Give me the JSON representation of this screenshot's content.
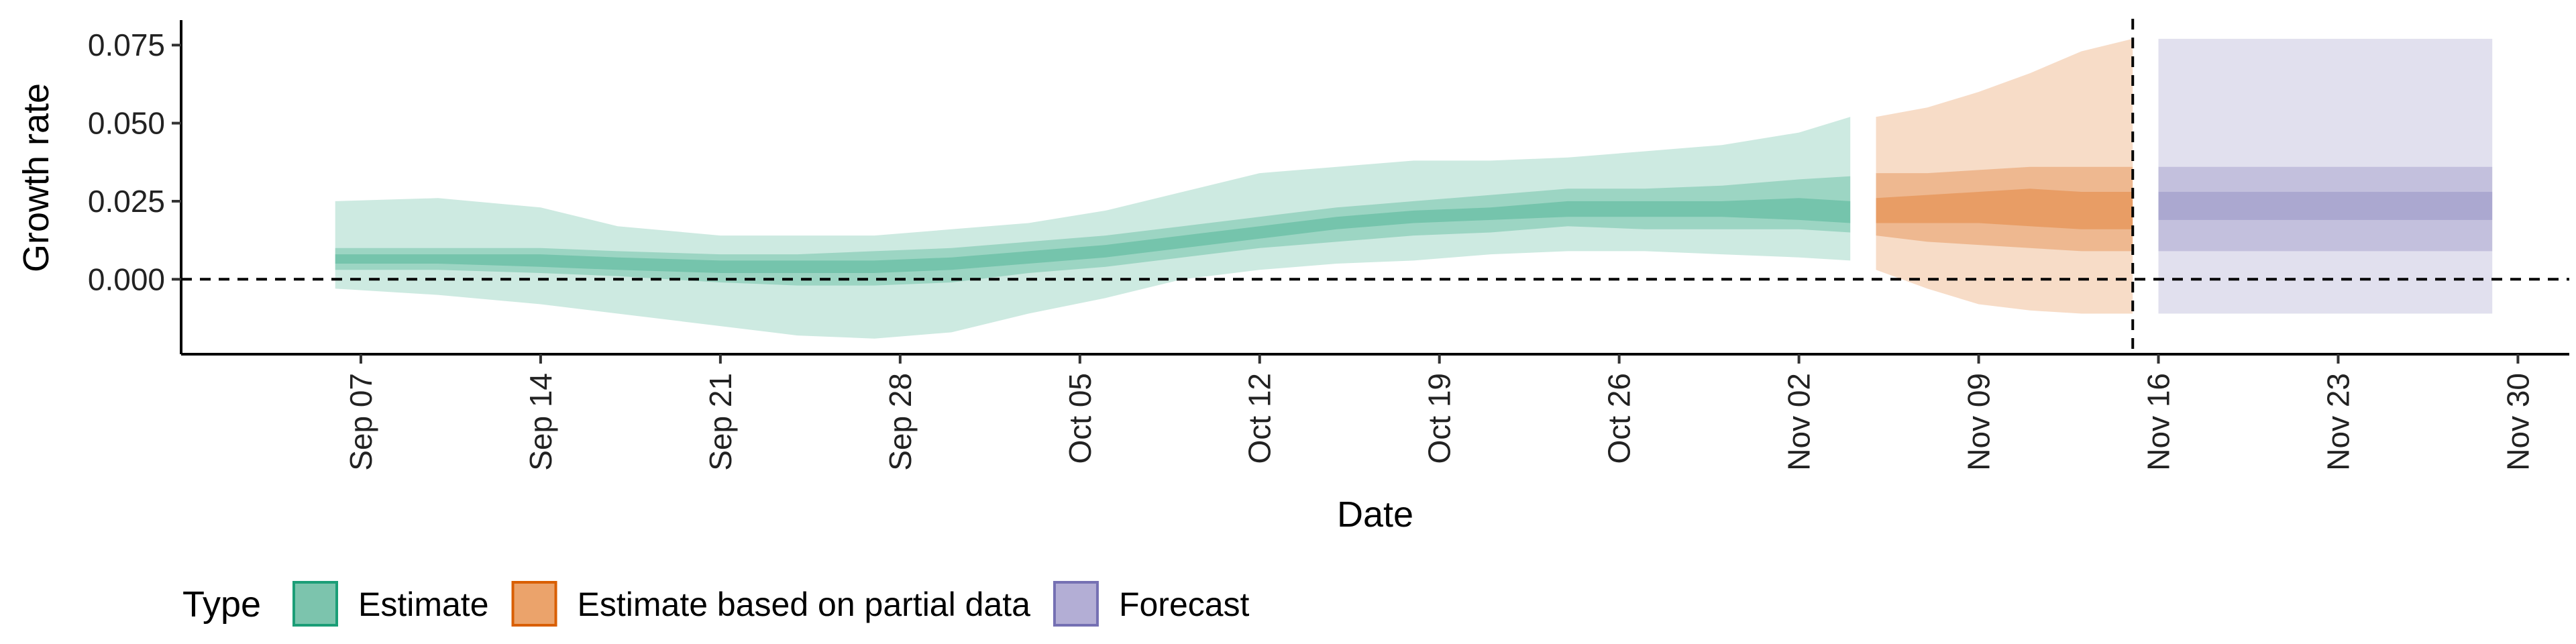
{
  "chart_data": {
    "type": "area",
    "title": "",
    "xlabel": "Date",
    "ylabel": "Growth rate",
    "x_start": "2020-09-06",
    "x_end": "2020-11-29",
    "xlim": [
      "2020-08-31",
      "2020-12-02"
    ],
    "ylim": [
      -0.024,
      0.083
    ],
    "x_ticks": [
      {
        "date": "2020-09-07",
        "label": "Sep 07"
      },
      {
        "date": "2020-09-14",
        "label": "Sep 14"
      },
      {
        "date": "2020-09-21",
        "label": "Sep 21"
      },
      {
        "date": "2020-09-28",
        "label": "Sep 28"
      },
      {
        "date": "2020-10-05",
        "label": "Oct 05"
      },
      {
        "date": "2020-10-12",
        "label": "Oct 12"
      },
      {
        "date": "2020-10-19",
        "label": "Oct 19"
      },
      {
        "date": "2020-10-26",
        "label": "Oct 26"
      },
      {
        "date": "2020-11-02",
        "label": "Nov 02"
      },
      {
        "date": "2020-11-09",
        "label": "Nov 09"
      },
      {
        "date": "2020-11-16",
        "label": "Nov 16"
      },
      {
        "date": "2020-11-23",
        "label": "Nov 23"
      },
      {
        "date": "2020-11-30",
        "label": "Nov 30"
      }
    ],
    "y_ticks": [
      {
        "value": 0.0,
        "label": "0.000"
      },
      {
        "value": 0.025,
        "label": "0.025"
      },
      {
        "value": 0.05,
        "label": "0.050"
      },
      {
        "value": 0.075,
        "label": "0.075"
      }
    ],
    "reference_lines": {
      "horizontal_y": 0,
      "vertical_date": "2020-11-15"
    },
    "grid": false,
    "legend_placement": "bottom-left",
    "legend": {
      "title": "Type",
      "items": [
        {
          "label": "Estimate",
          "fill": "#7cc4ad",
          "stroke": "#1b9e77"
        },
        {
          "label": "Estimate based on partial data",
          "fill": "#eba36b",
          "stroke": "#d95f02"
        },
        {
          "label": "Forecast",
          "fill": "#b3aed5",
          "stroke": "#7570b3"
        }
      ]
    },
    "series": [
      {
        "name": "Estimate",
        "color": "#1b9e77",
        "points": [
          {
            "date": "2020-09-06",
            "lower90": -0.003,
            "upper90": 0.025,
            "lower50": 0.003,
            "upper50": 0.01,
            "lower20": 0.005,
            "upper20": 0.008
          },
          {
            "date": "2020-09-10",
            "lower90": -0.005,
            "upper90": 0.026,
            "lower50": 0.003,
            "upper50": 0.01,
            "lower20": 0.005,
            "upper20": 0.008
          },
          {
            "date": "2020-09-14",
            "lower90": -0.008,
            "upper90": 0.023,
            "lower50": 0.002,
            "upper50": 0.01,
            "lower20": 0.004,
            "upper20": 0.008
          },
          {
            "date": "2020-09-17",
            "lower90": -0.011,
            "upper90": 0.017,
            "lower50": 0.001,
            "upper50": 0.009,
            "lower20": 0.003,
            "upper20": 0.007
          },
          {
            "date": "2020-09-21",
            "lower90": -0.015,
            "upper90": 0.014,
            "lower50": -0.001,
            "upper50": 0.008,
            "lower20": 0.002,
            "upper20": 0.006
          },
          {
            "date": "2020-09-24",
            "lower90": -0.018,
            "upper90": 0.014,
            "lower50": -0.002,
            "upper50": 0.008,
            "lower20": 0.002,
            "upper20": 0.006
          },
          {
            "date": "2020-09-27",
            "lower90": -0.019,
            "upper90": 0.014,
            "lower50": -0.002,
            "upper50": 0.009,
            "lower20": 0.002,
            "upper20": 0.006
          },
          {
            "date": "2020-09-30",
            "lower90": -0.017,
            "upper90": 0.016,
            "lower50": -0.001,
            "upper50": 0.01,
            "lower20": 0.003,
            "upper20": 0.007
          },
          {
            "date": "2020-10-03",
            "lower90": -0.011,
            "upper90": 0.018,
            "lower50": 0.002,
            "upper50": 0.012,
            "lower20": 0.005,
            "upper20": 0.009
          },
          {
            "date": "2020-10-06",
            "lower90": -0.006,
            "upper90": 0.022,
            "lower50": 0.004,
            "upper50": 0.014,
            "lower20": 0.007,
            "upper20": 0.011
          },
          {
            "date": "2020-10-09",
            "lower90": 0.0,
            "upper90": 0.028,
            "lower50": 0.007,
            "upper50": 0.017,
            "lower20": 0.01,
            "upper20": 0.014
          },
          {
            "date": "2020-10-12",
            "lower90": 0.003,
            "upper90": 0.034,
            "lower50": 0.01,
            "upper50": 0.02,
            "lower20": 0.013,
            "upper20": 0.017
          },
          {
            "date": "2020-10-15",
            "lower90": 0.005,
            "upper90": 0.036,
            "lower50": 0.012,
            "upper50": 0.023,
            "lower20": 0.016,
            "upper20": 0.02
          },
          {
            "date": "2020-10-18",
            "lower90": 0.006,
            "upper90": 0.038,
            "lower50": 0.014,
            "upper50": 0.025,
            "lower20": 0.018,
            "upper20": 0.022
          },
          {
            "date": "2020-10-21",
            "lower90": 0.008,
            "upper90": 0.038,
            "lower50": 0.015,
            "upper50": 0.027,
            "lower20": 0.019,
            "upper20": 0.023
          },
          {
            "date": "2020-10-24",
            "lower90": 0.009,
            "upper90": 0.039,
            "lower50": 0.017,
            "upper50": 0.029,
            "lower20": 0.02,
            "upper20": 0.025
          },
          {
            "date": "2020-10-27",
            "lower90": 0.009,
            "upper90": 0.041,
            "lower50": 0.016,
            "upper50": 0.029,
            "lower20": 0.02,
            "upper20": 0.025
          },
          {
            "date": "2020-10-30",
            "lower90": 0.008,
            "upper90": 0.043,
            "lower50": 0.016,
            "upper50": 0.03,
            "lower20": 0.02,
            "upper20": 0.025
          },
          {
            "date": "2020-11-02",
            "lower90": 0.007,
            "upper90": 0.047,
            "lower50": 0.016,
            "upper50": 0.032,
            "lower20": 0.019,
            "upper20": 0.026
          },
          {
            "date": "2020-11-04",
            "lower90": 0.006,
            "upper90": 0.052,
            "lower50": 0.015,
            "upper50": 0.033,
            "lower20": 0.018,
            "upper20": 0.025
          }
        ]
      },
      {
        "name": "Estimate based on partial data",
        "color": "#d95f02",
        "points": [
          {
            "date": "2020-11-05",
            "lower90": 0.003,
            "upper90": 0.052,
            "lower50": 0.014,
            "upper50": 0.034,
            "lower20": 0.018,
            "upper20": 0.026
          },
          {
            "date": "2020-11-07",
            "lower90": -0.003,
            "upper90": 0.055,
            "lower50": 0.012,
            "upper50": 0.034,
            "lower20": 0.018,
            "upper20": 0.027
          },
          {
            "date": "2020-11-09",
            "lower90": -0.008,
            "upper90": 0.06,
            "lower50": 0.011,
            "upper50": 0.035,
            "lower20": 0.018,
            "upper20": 0.028
          },
          {
            "date": "2020-11-11",
            "lower90": -0.01,
            "upper90": 0.066,
            "lower50": 0.01,
            "upper50": 0.036,
            "lower20": 0.017,
            "upper20": 0.029
          },
          {
            "date": "2020-11-13",
            "lower90": -0.011,
            "upper90": 0.073,
            "lower50": 0.009,
            "upper50": 0.036,
            "lower20": 0.016,
            "upper20": 0.028
          },
          {
            "date": "2020-11-15",
            "lower90": -0.011,
            "upper90": 0.077,
            "lower50": 0.009,
            "upper50": 0.036,
            "lower20": 0.016,
            "upper20": 0.028
          }
        ]
      },
      {
        "name": "Forecast",
        "color": "#7570b3",
        "points": [
          {
            "date": "2020-11-16",
            "lower90": -0.011,
            "upper90": 0.077,
            "lower50": 0.009,
            "upper50": 0.036,
            "lower20": 0.019,
            "upper20": 0.028
          },
          {
            "date": "2020-11-29",
            "lower90": -0.011,
            "upper90": 0.077,
            "lower50": 0.009,
            "upper50": 0.036,
            "lower20": 0.019,
            "upper20": 0.028
          }
        ]
      }
    ]
  }
}
